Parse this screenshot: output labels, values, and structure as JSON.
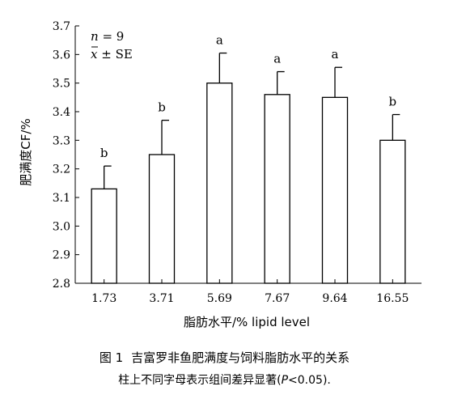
{
  "chart_data": {
    "type": "bar",
    "xlabel": "脂肪水平/% lipid level",
    "ylabel": "肥满度CF/%",
    "ylim": [
      2.8,
      3.7
    ],
    "yticks": [
      "2.8",
      "2.9",
      "3.0",
      "3.1",
      "3.2",
      "3.3",
      "3.4",
      "3.5",
      "3.6",
      "3.7"
    ],
    "categories": [
      "1.73",
      "3.71",
      "5.69",
      "7.67",
      "9.64",
      "16.55"
    ],
    "values": [
      3.13,
      3.25,
      3.5,
      3.46,
      3.45,
      3.3
    ],
    "errors": [
      0.08,
      0.12,
      0.105,
      0.08,
      0.105,
      0.09
    ],
    "labels": [
      "b",
      "b",
      "a",
      "a",
      "a",
      "b"
    ],
    "grid": false,
    "annotation": {
      "n_label": "n",
      "n_value": " = 9",
      "stat_label": "x",
      "stat_value": " ± SE"
    }
  },
  "caption": {
    "fig_no": "图 1",
    "title": "吉富罗非鱼肥满度与饲料脂肪水平的关系",
    "note_prefix": "柱上不同字母表示组间差异显著(",
    "note_p": "P",
    "note_suffix": "<0.05)."
  }
}
